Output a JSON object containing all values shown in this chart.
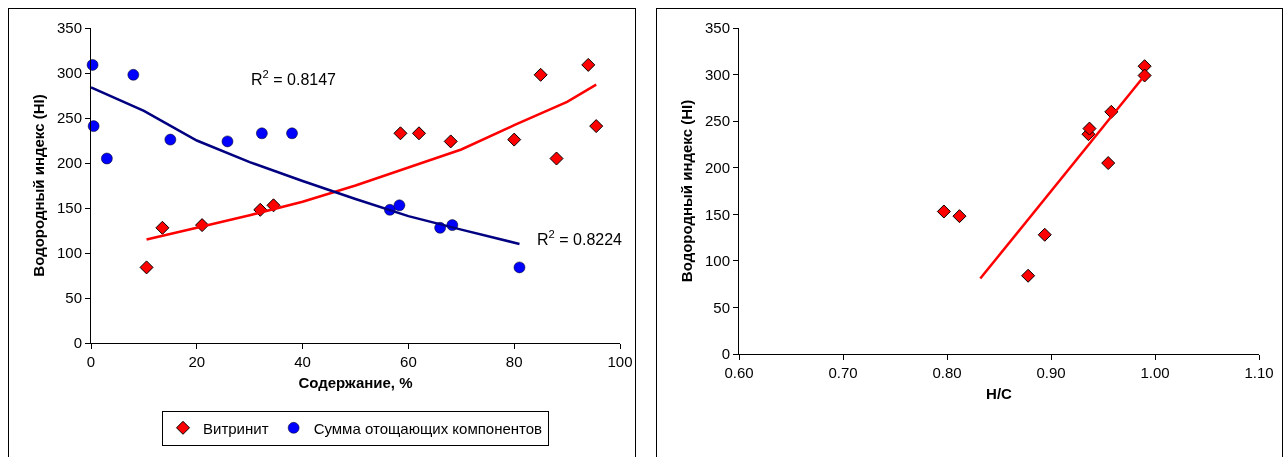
{
  "chart_data": [
    {
      "type": "scatter",
      "xlabel": "Содержание, %",
      "ylabel": "Водородный индекс (HI)",
      "xlim": [
        0,
        100
      ],
      "xticks": [
        0,
        20,
        40,
        60,
        80,
        100
      ],
      "ylim": [
        0,
        350
      ],
      "yticks": [
        0,
        50,
        100,
        150,
        200,
        250,
        300,
        350
      ],
      "grid": false,
      "legend": "bottom",
      "series": [
        {
          "name": "Витринит",
          "color": "#ff0000",
          "marker": "diamond",
          "x": [
            10.5,
            13.5,
            21,
            32,
            34.5,
            58.5,
            62,
            68,
            80,
            85,
            88,
            94,
            95.5
          ],
          "values": [
            84,
            128,
            131,
            148,
            153,
            233,
            233,
            224,
            226,
            298,
            205,
            309,
            241
          ]
        },
        {
          "name": "Сумма отощающих компонентов",
          "color": "#0000ff",
          "marker": "circle",
          "x": [
            0.3,
            0.5,
            3,
            8,
            15,
            25.8,
            32.3,
            38,
            56.5,
            58.3,
            66,
            68.3,
            81
          ],
          "values": [
            309,
            241,
            205,
            298,
            226,
            224,
            233,
            233,
            148,
            153,
            128,
            131,
            84
          ]
        },
        {
          "type": "line",
          "color": "#ff0000",
          "x": [
            10.5,
            20,
            30,
            40,
            50,
            60,
            70,
            80,
            90,
            95.5
          ],
          "values": [
            115,
            128,
            142,
            157,
            175,
            195,
            215,
            242,
            268,
            287
          ]
        },
        {
          "type": "line",
          "color": "#000080",
          "x": [
            0,
            10,
            20,
            30,
            40,
            50,
            60,
            70,
            81
          ],
          "values": [
            284,
            258,
            225,
            201,
            180,
            160,
            141,
            126,
            110
          ]
        }
      ],
      "annotations": [
        "R$^{2}$ = 0.8147",
        "R$^{2}$ = 0.8224"
      ]
    },
    {
      "type": "scatter",
      "xlabel": "H/C",
      "ylabel": "Водородный индекс (HI)",
      "xlim": [
        0.6,
        1.1
      ],
      "xticks": [
        {
          "value": 0.6,
          "label": "0.60"
        },
        {
          "value": 0.7,
          "label": "0.70"
        },
        {
          "value": 0.8,
          "label": "0.80"
        },
        {
          "value": 0.9,
          "label": "0.90"
        },
        {
          "value": 1.0,
          "label": "1.00"
        },
        {
          "value": 1.1,
          "label": "1.10"
        }
      ],
      "ylim": [
        0,
        350
      ],
      "yticks": [
        0,
        50,
        100,
        150,
        200,
        250,
        300,
        350
      ],
      "grid": false,
      "legend": false,
      "series": [
        {
          "color": "#ff0000",
          "marker": "diamond",
          "x": [
            0.797,
            0.812,
            0.878,
            0.894,
            0.936,
            0.937,
            0.955,
            0.958,
            0.99,
            0.99
          ],
          "values": [
            153,
            148,
            84,
            128,
            236,
            242,
            205,
            260,
            309,
            299
          ]
        },
        {
          "type": "line",
          "color": "#ff0000",
          "x": [
            0.832,
            0.99
          ],
          "values": [
            81,
            299
          ]
        }
      ]
    }
  ]
}
